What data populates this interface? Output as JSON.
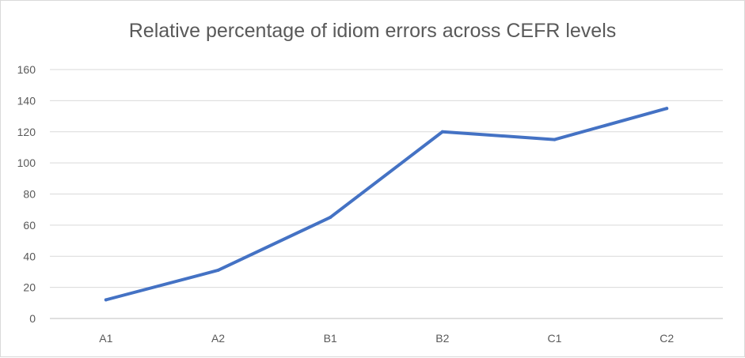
{
  "chart_data": {
    "type": "line",
    "title": "Relative percentage of idiom errors across CEFR levels",
    "xlabel": "",
    "ylabel": "",
    "categories": [
      "A1",
      "A2",
      "B1",
      "B2",
      "C1",
      "C2"
    ],
    "series": [
      {
        "values": [
          12,
          31,
          65,
          120,
          115,
          135
        ],
        "color": "#4472c4"
      }
    ],
    "ylim": [
      0,
      160
    ],
    "yticks": [
      0,
      20,
      40,
      60,
      80,
      100,
      120,
      140,
      160
    ],
    "grid": true,
    "legend": "none",
    "gridColor": "#d9d9d9",
    "axisColor": "#bfbfbf"
  }
}
